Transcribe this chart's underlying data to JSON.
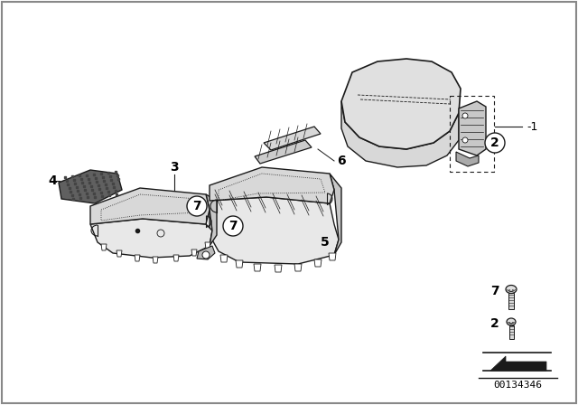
{
  "background_color": "#ffffff",
  "line_color": "#1a1a1a",
  "text_color": "#000000",
  "diagram_id": "00134346",
  "figure_size": [
    6.4,
    4.48
  ],
  "dpi": 100,
  "border_color": "#888888",
  "part_gray_light": "#e8e8e8",
  "part_gray_mid": "#d0d0d0",
  "part_gray_dark": "#b0b0b0",
  "pad_color": "#888888"
}
